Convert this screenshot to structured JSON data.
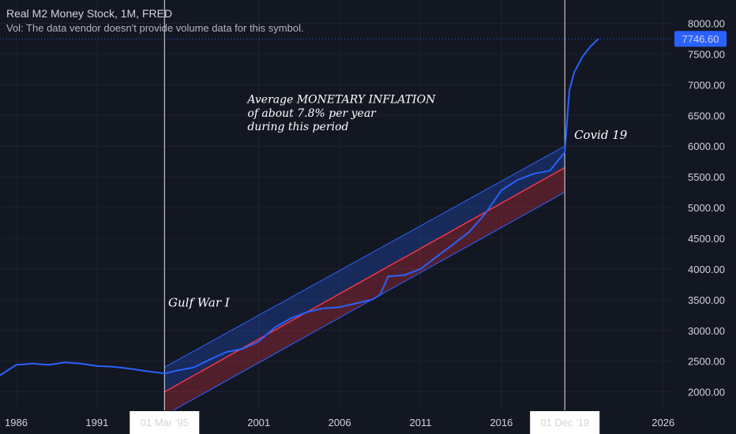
{
  "header": {
    "title": "Real M2 Money Stock, 1M, FRED",
    "vol_note": "Vol: The data vendor doesn't provide volume data for this symbol."
  },
  "colors": {
    "background": "#131722",
    "line": "#2962ff",
    "upper_channel": "#2962ff",
    "lower_channel": "#f23645",
    "last_price_badge": "#2962ff"
  },
  "chart_data": {
    "type": "line",
    "xlim": [
      1985.0,
      2026.6
    ],
    "ylim": [
      1700,
      8250
    ],
    "y_ticks": [
      "8000.00",
      "7500.00",
      "7000.00",
      "6500.00",
      "6000.00",
      "5500.00",
      "5000.00",
      "4500.00",
      "4000.00",
      "3500.00",
      "3000.00",
      "2500.00",
      "2000.00"
    ],
    "y_tick_values": [
      8000,
      7500,
      7000,
      6500,
      6000,
      5500,
      5000,
      4500,
      4000,
      3500,
      3000,
      2500,
      2000
    ],
    "x_ticks": [
      "1986",
      "1991",
      "2001",
      "2006",
      "2011",
      "2016",
      "2026"
    ],
    "x_tick_values": [
      1986,
      1991,
      2001,
      2006,
      2011,
      2016,
      2026
    ],
    "last_price": "7746.60",
    "last_price_value": 7746.6,
    "markers": [
      {
        "label": "01 Mar '95",
        "x": 1995.17
      },
      {
        "label": "01 Dec '19",
        "x": 2019.92
      }
    ],
    "channel": {
      "x_start": 1995.17,
      "x_end": 2019.92,
      "upper": [
        2400,
        6000
      ],
      "middle": [
        2000,
        5650
      ],
      "lower": [
        1620,
        5250
      ]
    },
    "series": [
      {
        "x": [
          1985.0,
          1986.0,
          1987.0,
          1988.0,
          1989.0,
          1990.0,
          1991.0,
          1992.0,
          1993.0,
          1994.0,
          1995.17,
          1996.0,
          1997.0,
          1998.0,
          1999.0,
          2000.0,
          2001.0,
          2002.0,
          2003.0,
          2004.0,
          2005.0,
          2006.0,
          2007.0,
          2008.0,
          2008.5,
          2009.0,
          2010.0,
          2011.0,
          2012.0,
          2013.0,
          2014.0,
          2015.0,
          2016.0,
          2017.0,
          2018.0,
          2019.0,
          2019.92,
          2020.2,
          2020.5,
          2021.0,
          2021.5,
          2022.0
        ],
        "values": [
          2270,
          2440,
          2460,
          2440,
          2480,
          2460,
          2420,
          2410,
          2380,
          2340,
          2300,
          2350,
          2400,
          2530,
          2650,
          2700,
          2820,
          3050,
          3200,
          3300,
          3360,
          3380,
          3440,
          3500,
          3580,
          3880,
          3900,
          4000,
          4200,
          4400,
          4600,
          4900,
          5280,
          5450,
          5550,
          5600,
          5900,
          6900,
          7200,
          7450,
          7620,
          7746.6
        ]
      }
    ],
    "annotations": [
      {
        "text": "Average MONETARY INFLATION",
        "x": 2000.3,
        "y": 6700
      },
      {
        "text": "of about 7.8% per year",
        "x": 2000.3,
        "y": 6480
      },
      {
        "text": "during this period",
        "x": 2000.3,
        "y": 6260
      },
      {
        "text": "Covid 19",
        "x": 2020.5,
        "y": 6120
      },
      {
        "text": "Gulf War I",
        "x": 1995.4,
        "y": 3390
      }
    ]
  }
}
